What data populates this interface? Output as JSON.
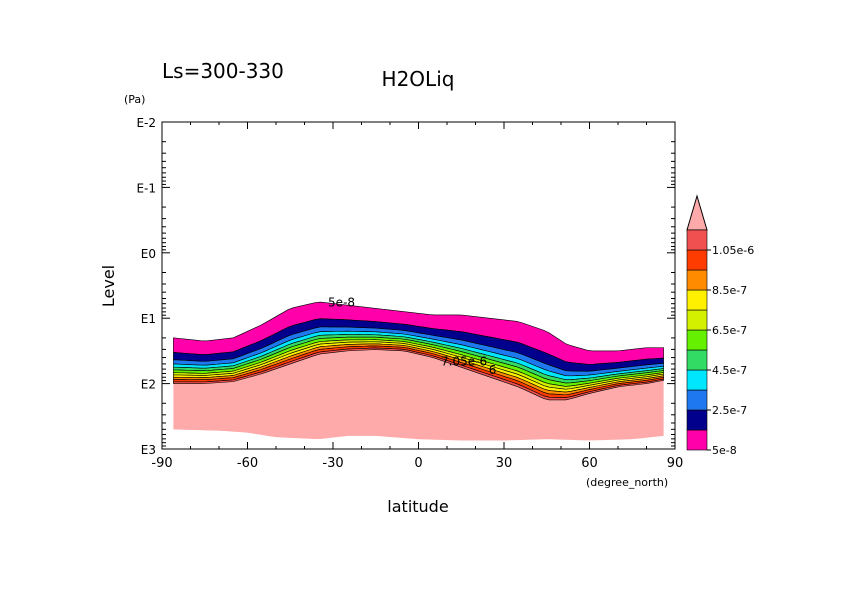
{
  "chart_data": {
    "type": "heatmap",
    "title": "H2OLiq",
    "subtitle": "Ls=300-330",
    "xlabel": "latitude",
    "xunit": "(degree_north)",
    "ylabel": "Level",
    "yunit": "(Pa)",
    "xlim": [
      -90,
      90
    ],
    "xticks": [
      -90,
      -60,
      -30,
      0,
      30,
      60,
      90
    ],
    "ylim_log10_pressure": [
      -2,
      3
    ],
    "yscale": "log",
    "yaxis_inverted": true,
    "yticks": [
      "E-2",
      "E-1",
      "E0",
      "E1",
      "E2",
      "E3"
    ],
    "yticks_log10": [
      -2,
      -1,
      0,
      1,
      2,
      3
    ],
    "colorbar": {
      "labels": [
        "5e-8",
        "2.5e-7",
        "4.5e-7",
        "6.5e-7",
        "8.5e-7",
        "1.05e-6"
      ],
      "label_values": [
        5e-08,
        2.5e-07,
        4.5e-07,
        6.5e-07,
        8.5e-07,
        1.05e-06
      ],
      "levels": [
        5e-08,
        1.5e-07,
        2.5e-07,
        3.5e-07,
        4.5e-07,
        5.5e-07,
        6.5e-07,
        7.5e-07,
        8.5e-07,
        9.5e-07,
        1.05e-06
      ],
      "colors": [
        "#ff00aa",
        "#00008c",
        "#1e78f0",
        "#00e6ff",
        "#32dc64",
        "#64f000",
        "#d2f000",
        "#fff000",
        "#ff8c00",
        "#ff3c00",
        "#f05050"
      ],
      "extend": "max",
      "over_color": "#ffaaaa"
    },
    "contour_labels": [
      "5e-8",
      "7.05e-6",
      "6"
    ],
    "colors": {
      "below_ground": "#ffaaaa",
      "frame": "#000000"
    },
    "cloud_profile": {
      "lat": [
        -86,
        -75,
        -65,
        -55,
        -45,
        -35,
        -25,
        -15,
        -5,
        5,
        15,
        25,
        35,
        45,
        52,
        60,
        70,
        80,
        86
      ],
      "top_log10": [
        1.3,
        1.35,
        1.3,
        1.1,
        0.85,
        0.75,
        0.8,
        0.85,
        0.9,
        0.95,
        0.95,
        1.0,
        1.05,
        1.2,
        1.4,
        1.5,
        1.5,
        1.45,
        1.45
      ],
      "base_log10": [
        2.0,
        2.0,
        1.97,
        1.85,
        1.7,
        1.55,
        1.5,
        1.48,
        1.5,
        1.6,
        1.75,
        1.9,
        2.05,
        2.25,
        2.25,
        2.15,
        2.05,
        2.0,
        1.95
      ]
    },
    "surface_profile": {
      "lat": [
        -86,
        -70,
        -60,
        -50,
        -35,
        -25,
        -15,
        0,
        15,
        30,
        45,
        60,
        75,
        86
      ],
      "log10": [
        2.7,
        2.72,
        2.75,
        2.82,
        2.85,
        2.8,
        2.8,
        2.85,
        2.87,
        2.87,
        2.85,
        2.87,
        2.85,
        2.8
      ]
    }
  }
}
